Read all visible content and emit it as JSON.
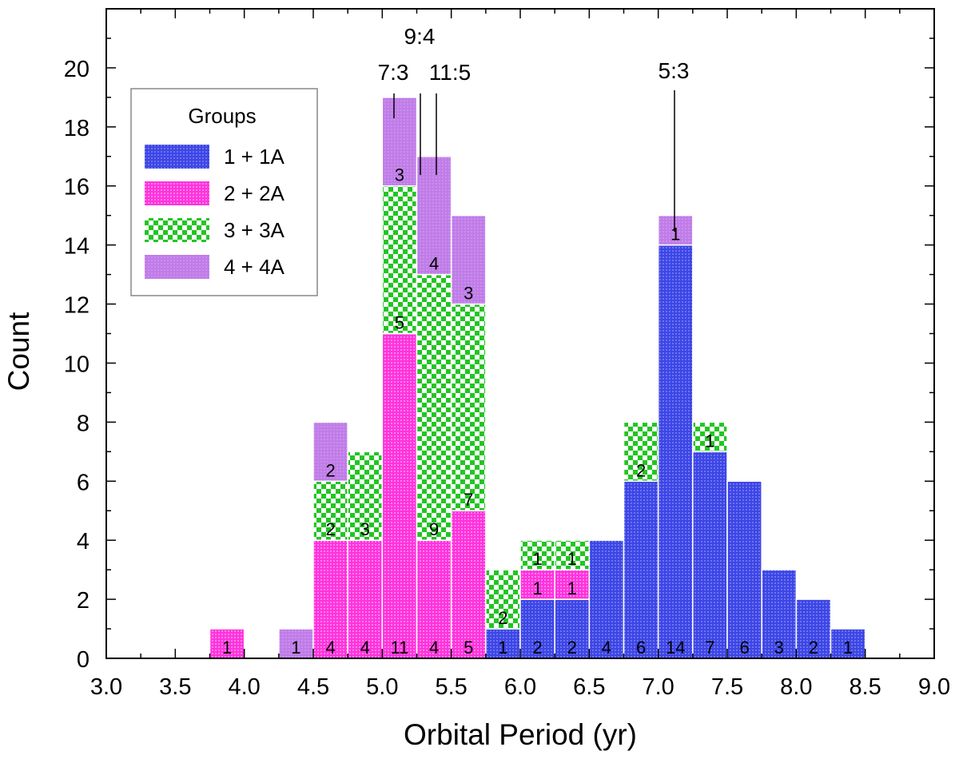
{
  "chart_data": {
    "type": "bar",
    "stacked": true,
    "xlabel": "Orbital Period (yr)",
    "ylabel": "Count",
    "xlim": [
      3.0,
      9.0
    ],
    "ylim": [
      0,
      22
    ],
    "xticks": [
      "3.0",
      "3.5",
      "4.0",
      "4.5",
      "5.0",
      "5.5",
      "6.0",
      "6.5",
      "7.0",
      "7.5",
      "8.0",
      "8.5",
      "9.0"
    ],
    "yticks": [
      "0",
      "2",
      "4",
      "6",
      "8",
      "10",
      "12",
      "14",
      "16",
      "18",
      "20"
    ],
    "bin_width": 0.25,
    "bin_starts": [
      3.75,
      4.25,
      4.5,
      4.75,
      5.0,
      5.25,
      5.5,
      5.75,
      6.0,
      6.25,
      6.5,
      6.75,
      7.0,
      7.25,
      7.5,
      7.75,
      8.0,
      8.25
    ],
    "legend": {
      "title": "Groups",
      "position": "top-left"
    },
    "series": [
      {
        "name": "1 + 1A",
        "color": "#3d46e6",
        "pattern": "dots",
        "values": [
          0,
          0,
          0,
          0,
          0,
          0,
          0,
          1,
          2,
          2,
          4,
          6,
          14,
          7,
          6,
          3,
          2,
          1
        ]
      },
      {
        "name": "2 + 2A",
        "color": "#ff33dd",
        "pattern": "dots",
        "values": [
          1,
          0,
          4,
          4,
          11,
          4,
          5,
          0,
          1,
          1,
          0,
          0,
          0,
          0,
          0,
          0,
          0,
          0
        ]
      },
      {
        "name": "3 + 3A",
        "color": "#22c522",
        "pattern": "checker",
        "values": [
          0,
          0,
          2,
          3,
          5,
          9,
          7,
          2,
          1,
          1,
          0,
          2,
          0,
          1,
          0,
          0,
          0,
          0
        ]
      },
      {
        "name": "4 + 4A",
        "color": "#c07ce8",
        "pattern": "plain",
        "values": [
          0,
          1,
          2,
          0,
          3,
          4,
          3,
          0,
          0,
          0,
          0,
          0,
          1,
          0,
          0,
          0,
          0,
          0
        ]
      }
    ],
    "annotations": [
      {
        "label": "9:4",
        "x": 5.25
      },
      {
        "label": "7:3",
        "x": 5.0
      },
      {
        "label": "11:5",
        "x": 5.36
      },
      {
        "label": "5:3",
        "x": 7.12
      }
    ]
  }
}
